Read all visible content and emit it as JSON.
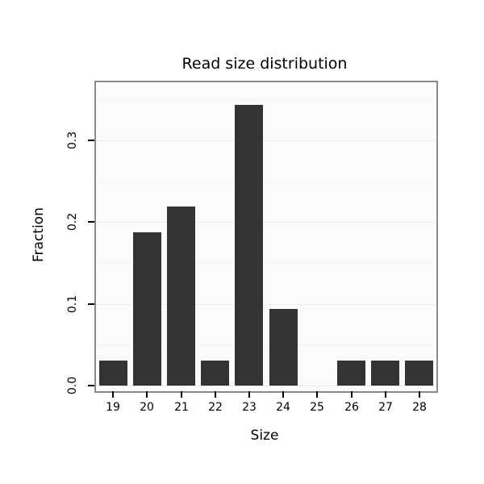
{
  "chart_data": {
    "type": "bar",
    "title": "Read size distribution",
    "xlabel": "Size",
    "ylabel": "Fraction",
    "categories": [
      "19",
      "20",
      "21",
      "22",
      "23",
      "24",
      "25",
      "26",
      "27",
      "28"
    ],
    "values": [
      0.031,
      0.188,
      0.219,
      0.031,
      0.344,
      0.094,
      0,
      0.031,
      0.031,
      0.031
    ],
    "ylim": [
      0,
      0.37
    ],
    "yticks_major": [
      0.0,
      0.1,
      0.2,
      0.3
    ],
    "yticks_minor": [
      0.05,
      0.15,
      0.25,
      0.35
    ],
    "ytick_labels": [
      "0.0",
      "0.1",
      "0.2",
      "0.3"
    ],
    "grid": "on",
    "legend": "none",
    "bar_color": "#333333",
    "panel_background": "#fbfbfb",
    "panel_border_color": "#898989"
  }
}
